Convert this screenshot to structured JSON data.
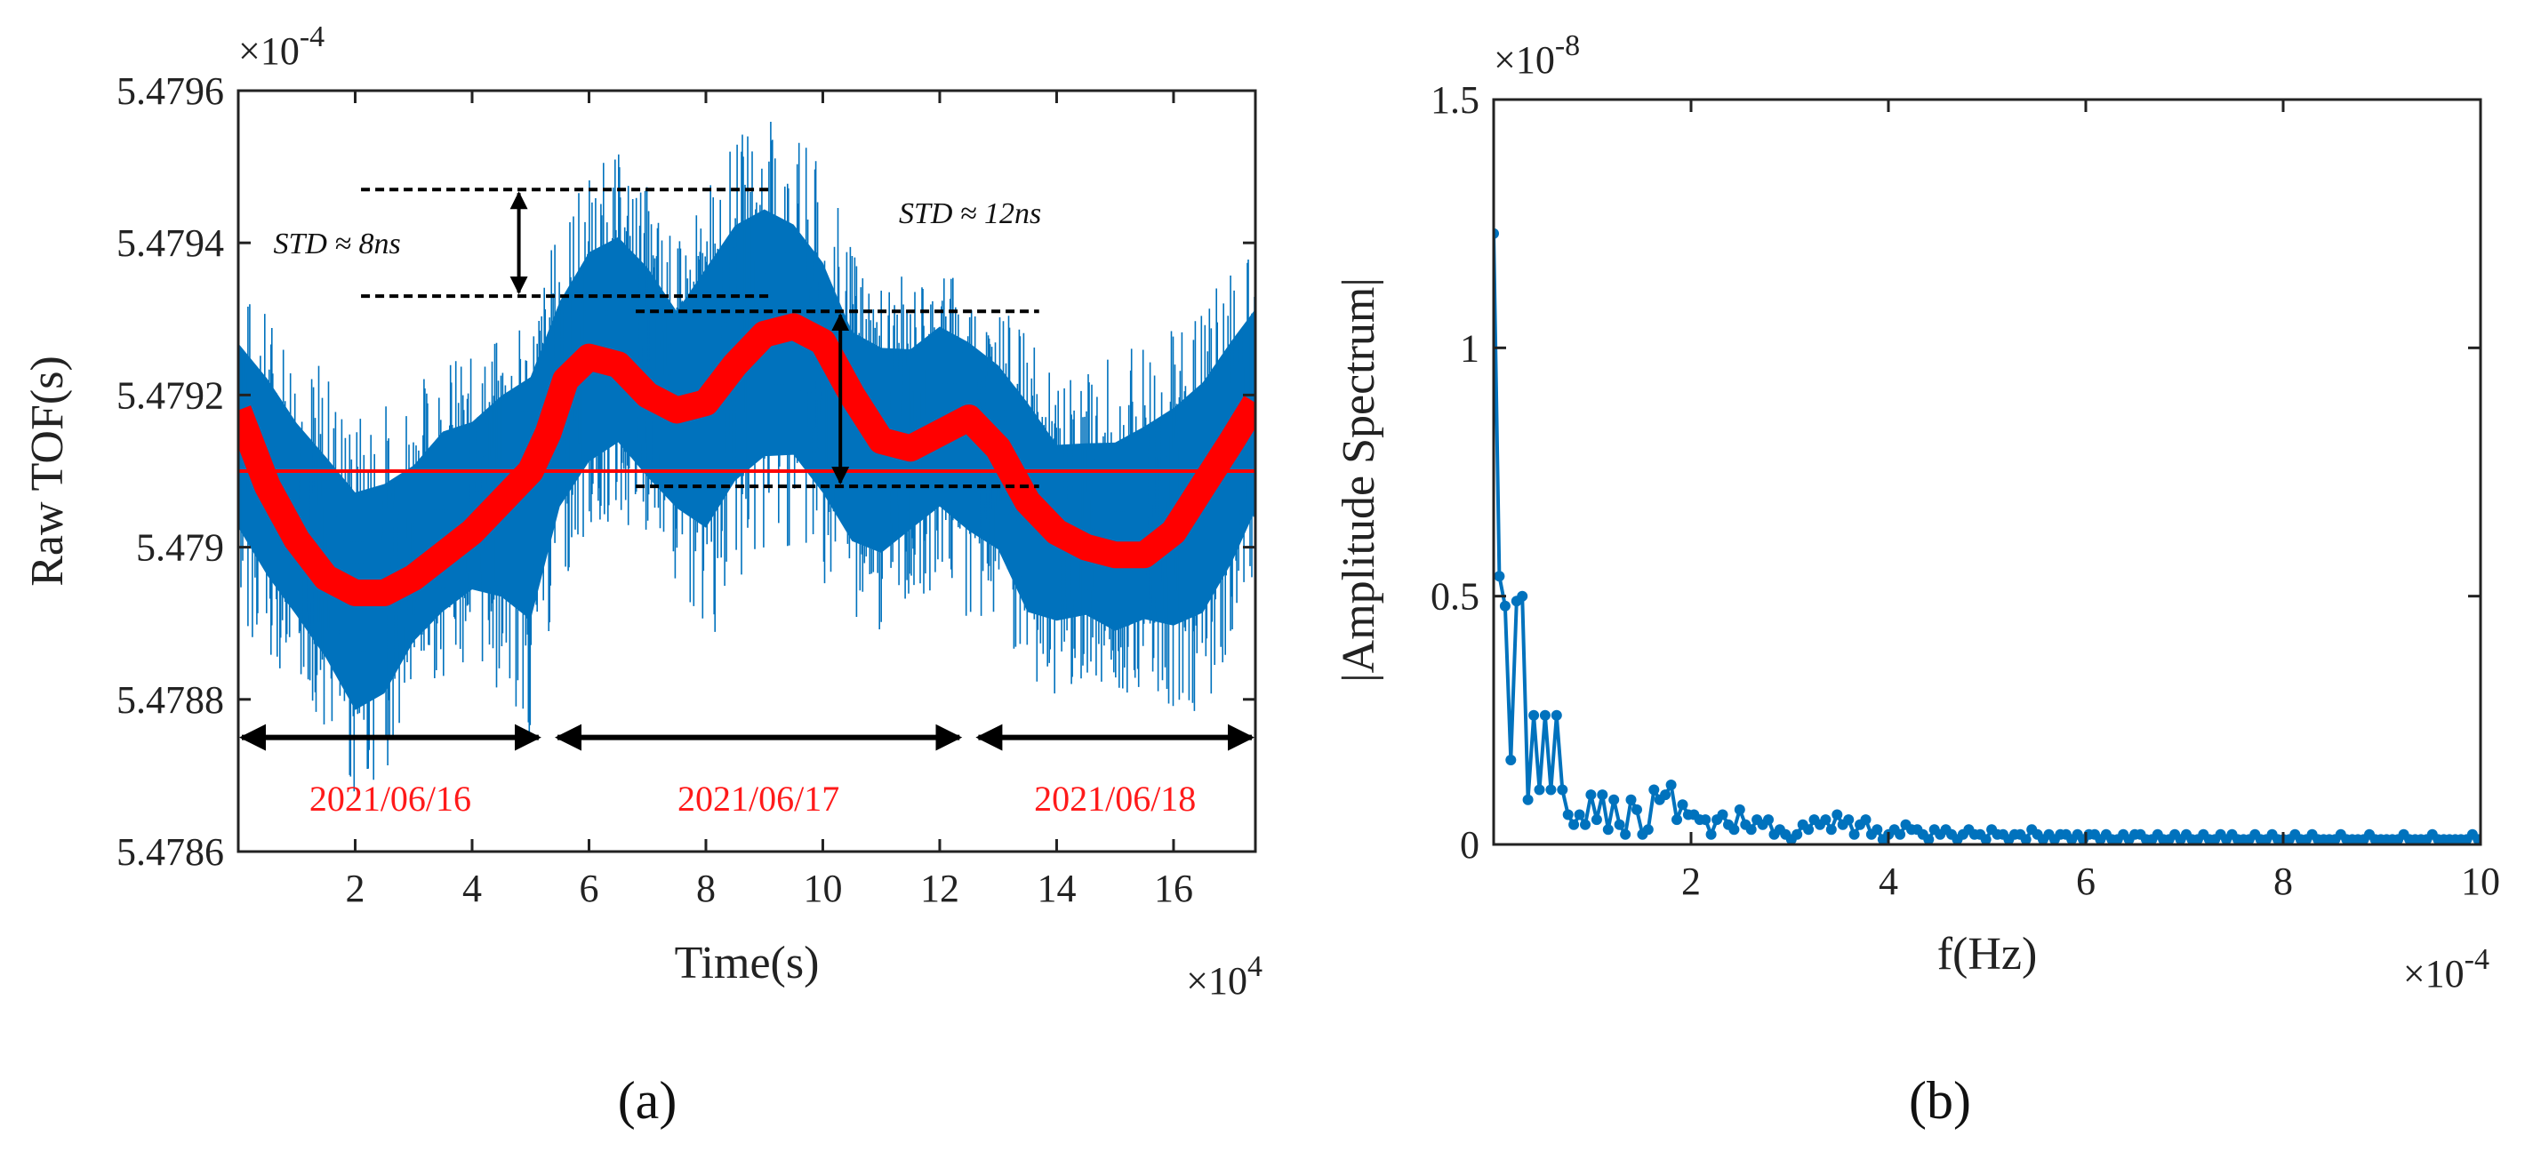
{
  "colors": {
    "blue": "#0072BD",
    "red": "#ff0000",
    "axis": "#222222"
  },
  "chart_data": [
    {
      "type": "line",
      "panel_label": "(a)",
      "xlabel": "Time(s)",
      "ylabel": "Raw TOF(s)",
      "x_exponent": "×10^4",
      "y_exponent": "×10^-4",
      "xlim": [
        0,
        17.4
      ],
      "ylim": [
        5.4786,
        5.4796
      ],
      "xticks": [
        2,
        4,
        6,
        8,
        10,
        12,
        14,
        16
      ],
      "xtick_labels": [
        "2",
        "4",
        "6",
        "8",
        "10",
        "12",
        "14",
        "16"
      ],
      "yticks": [
        5.4786,
        5.4788,
        5.479,
        5.4792,
        5.4794,
        5.4796
      ],
      "ytick_labels": [
        "5.4786",
        "5.4788",
        "5.479",
        "5.4792",
        "5.4794",
        "5.4796"
      ],
      "series": [
        {
          "name": "raw TOF band (min/mean/max per 0.5e4 s)",
          "color": "#0072BD",
          "x": [
            0,
            0.5,
            1.0,
            1.5,
            2.0,
            2.5,
            3.0,
            3.5,
            4.0,
            4.5,
            5.0,
            5.5,
            6.0,
            6.5,
            7.0,
            7.5,
            8.0,
            8.5,
            9.0,
            9.5,
            10.0,
            10.5,
            11.0,
            11.5,
            12.0,
            12.5,
            13.0,
            13.5,
            14.0,
            14.5,
            15.0,
            15.5,
            16.0,
            16.5,
            17.0,
            17.4
          ],
          "mean": [
            5.47918,
            5.4791,
            5.47902,
            5.47897,
            5.47894,
            5.47894,
            5.47897,
            5.47902,
            5.47906,
            5.4791,
            5.47913,
            5.47918,
            5.47925,
            5.47927,
            5.47923,
            5.4792,
            5.47924,
            5.47928,
            5.47929,
            5.47927,
            5.47922,
            5.47914,
            5.47913,
            5.47915,
            5.47918,
            5.47917,
            5.47914,
            5.47908,
            5.47903,
            5.47901,
            5.479,
            5.47901,
            5.47904,
            5.47909,
            5.47914,
            5.47917
          ],
          "low": [
            5.4789,
            5.47885,
            5.47882,
            5.47876,
            5.47866,
            5.4787,
            5.4788,
            5.47883,
            5.47885,
            5.4788,
            5.47872,
            5.47895,
            5.479,
            5.47903,
            5.47898,
            5.47893,
            5.47885,
            5.47893,
            5.47898,
            5.479,
            5.47895,
            5.4789,
            5.47888,
            5.47892,
            5.47895,
            5.4789,
            5.47888,
            5.47878,
            5.4788,
            5.47883,
            5.4788,
            5.47882,
            5.47878,
            5.47877,
            5.47885,
            5.47895
          ],
          "high": [
            5.47934,
            5.47932,
            5.47928,
            5.47924,
            5.47918,
            5.4792,
            5.47922,
            5.47926,
            5.47925,
            5.47928,
            5.4793,
            5.47944,
            5.4795,
            5.47952,
            5.47948,
            5.4794,
            5.47947,
            5.47954,
            5.47957,
            5.47955,
            5.4795,
            5.4794,
            5.47937,
            5.47935,
            5.47938,
            5.47935,
            5.47932,
            5.47928,
            5.47922,
            5.47924,
            5.47925,
            5.47928,
            5.4793,
            5.47932,
            5.47938,
            5.47943
          ]
        },
        {
          "name": "trend",
          "color": "#ff0000",
          "x": [
            0,
            0.5,
            1.0,
            1.5,
            2.0,
            2.5,
            3.0,
            3.5,
            4.0,
            4.5,
            5.0,
            5.3,
            5.6,
            6.0,
            6.5,
            7.0,
            7.5,
            8.0,
            8.5,
            9.0,
            9.5,
            10.0,
            10.5,
            11.0,
            11.5,
            12.0,
            12.5,
            13.0,
            13.5,
            14.0,
            14.5,
            15.0,
            15.5,
            16.0,
            16.5,
            17.0,
            17.4
          ],
          "y": [
            5.47918,
            5.47908,
            5.47901,
            5.47896,
            5.47894,
            5.47894,
            5.47896,
            5.47899,
            5.47902,
            5.47906,
            5.4791,
            5.47915,
            5.47922,
            5.47925,
            5.47924,
            5.4792,
            5.47918,
            5.47919,
            5.47924,
            5.47928,
            5.47929,
            5.47927,
            5.4792,
            5.47914,
            5.47913,
            5.47915,
            5.47917,
            5.47913,
            5.47906,
            5.47902,
            5.479,
            5.47899,
            5.47899,
            5.47902,
            5.47908,
            5.47914,
            5.47919
          ]
        },
        {
          "name": "mean level",
          "color": "#ff0000",
          "y": 5.4791
        }
      ],
      "annotations": {
        "std_left": "STD ≈ 8ns",
        "std_right": "STD ≈ 12ns",
        "dates": [
          "2021/06/16",
          "2021/06/17",
          "2021/06/18"
        ],
        "date_spans": [
          [
            0,
            5.2
          ],
          [
            5.4,
            12.4
          ],
          [
            12.6,
            17.4
          ]
        ],
        "dashed_left": {
          "upper": 5.47947,
          "lower": 5.47933,
          "x": [
            2.1,
            9.1
          ]
        },
        "dashed_right": {
          "upper": 5.47931,
          "lower": 5.47908,
          "x": [
            6.8,
            13.7
          ]
        }
      }
    },
    {
      "type": "line",
      "panel_label": "(b)",
      "xlabel": "f(Hz)",
      "ylabel": "|Amplitude Spectrum|",
      "x_exponent": "×10^-4",
      "y_exponent": "×10^-8",
      "xlim": [
        0,
        10
      ],
      "ylim": [
        0,
        1.5
      ],
      "xticks": [
        2,
        4,
        6,
        8,
        10
      ],
      "xtick_labels": [
        "2",
        "4",
        "6",
        "8",
        "10"
      ],
      "yticks": [
        0,
        0.5,
        1,
        1.5
      ],
      "ytick_labels": [
        "0",
        "0.5",
        "1",
        "1.5"
      ],
      "series": [
        {
          "name": "amplitude spectrum",
          "color": "#0072BD",
          "x": [
            0,
            0.058,
            0.116,
            0.174,
            0.232,
            0.29,
            0.348,
            0.406,
            0.464,
            0.522,
            0.58,
            0.638,
            0.696,
            0.754,
            0.812,
            0.87,
            0.928,
            0.986,
            1.044,
            1.102,
            1.16,
            1.218,
            1.276,
            1.334,
            1.392,
            1.45,
            1.508,
            1.566,
            1.624,
            1.682,
            1.74,
            1.798,
            1.856,
            1.914,
            1.972,
            2.03,
            2.088,
            2.146,
            2.204,
            2.262,
            2.32,
            2.378,
            2.436,
            2.494,
            2.552,
            2.61,
            2.668,
            2.726,
            2.784,
            2.842,
            2.9,
            2.958,
            3.016,
            3.074,
            3.132,
            3.19,
            3.248,
            3.306,
            3.364,
            3.422,
            3.48,
            3.538,
            3.596,
            3.654,
            3.712,
            3.77,
            3.828,
            3.886,
            3.944,
            4.002,
            4.06,
            4.118,
            4.176,
            4.234,
            4.292,
            4.35,
            4.408,
            4.466,
            4.524,
            4.582,
            4.64,
            4.698,
            4.756,
            4.814,
            4.872,
            4.93,
            4.988,
            5.046,
            5.104,
            5.162,
            5.22,
            5.278,
            5.336,
            5.394,
            5.452,
            5.51,
            5.568,
            5.626,
            5.684,
            5.742,
            5.8,
            5.858,
            5.916,
            5.974,
            6.032,
            6.09,
            6.148,
            6.206,
            6.264,
            6.322,
            6.38,
            6.438,
            6.496,
            6.554,
            6.612,
            6.67,
            6.728,
            6.786,
            6.844,
            6.902,
            6.96,
            7.018,
            7.076,
            7.134,
            7.192,
            7.25,
            7.308,
            7.366,
            7.424,
            7.482,
            7.54,
            7.598,
            7.656,
            7.714,
            7.772,
            7.83,
            7.888,
            7.946,
            8.004,
            8.062,
            8.12,
            8.178,
            8.236,
            8.294,
            8.352,
            8.41,
            8.468,
            8.526,
            8.584,
            8.642,
            8.7,
            8.758,
            8.816,
            8.874,
            8.932,
            8.99,
            9.048,
            9.106,
            9.164,
            9.222,
            9.28,
            9.338,
            9.396,
            9.454,
            9.512,
            9.57,
            9.628,
            9.686,
            9.744,
            9.802,
            9.86,
            9.918,
            9.976
          ],
          "y": [
            1.23,
            0.54,
            0.48,
            0.17,
            0.49,
            0.5,
            0.09,
            0.26,
            0.11,
            0.26,
            0.11,
            0.26,
            0.11,
            0.06,
            0.04,
            0.06,
            0.04,
            0.1,
            0.05,
            0.1,
            0.03,
            0.09,
            0.04,
            0.02,
            0.09,
            0.07,
            0.02,
            0.03,
            0.11,
            0.09,
            0.1,
            0.12,
            0.05,
            0.08,
            0.06,
            0.06,
            0.05,
            0.05,
            0.02,
            0.05,
            0.06,
            0.04,
            0.03,
            0.07,
            0.04,
            0.03,
            0.05,
            0.04,
            0.05,
            0.02,
            0.03,
            0.02,
            0.01,
            0.02,
            0.04,
            0.03,
            0.05,
            0.04,
            0.05,
            0.03,
            0.06,
            0.04,
            0.05,
            0.02,
            0.04,
            0.05,
            0.02,
            0.03,
            0.01,
            0.02,
            0.03,
            0.02,
            0.04,
            0.03,
            0.03,
            0.02,
            0.01,
            0.03,
            0.02,
            0.03,
            0.02,
            0.01,
            0.02,
            0.03,
            0.02,
            0.02,
            0.01,
            0.03,
            0.02,
            0.02,
            0.01,
            0.02,
            0.02,
            0.01,
            0.03,
            0.02,
            0.01,
            0.02,
            0.01,
            0.02,
            0.02,
            0.01,
            0.02,
            0.01,
            0.02,
            0.02,
            0.01,
            0.02,
            0.01,
            0.01,
            0.02,
            0.01,
            0.02,
            0.02,
            0.01,
            0.01,
            0.02,
            0.01,
            0.01,
            0.02,
            0.01,
            0.02,
            0.01,
            0.01,
            0.02,
            0.01,
            0.01,
            0.02,
            0.01,
            0.02,
            0.01,
            0.01,
            0.01,
            0.02,
            0.01,
            0.01,
            0.02,
            0.01,
            0.01,
            0.01,
            0.02,
            0.01,
            0.01,
            0.02,
            0.01,
            0.01,
            0.01,
            0.01,
            0.02,
            0.01,
            0.01,
            0.01,
            0.01,
            0.02,
            0.01,
            0.01,
            0.01,
            0.01,
            0.01,
            0.02,
            0.01,
            0.01,
            0.01,
            0.01,
            0.02,
            0.01,
            0.01,
            0.01,
            0.01,
            0.01,
            0.01,
            0.02,
            0.01
          ]
        }
      ]
    }
  ]
}
